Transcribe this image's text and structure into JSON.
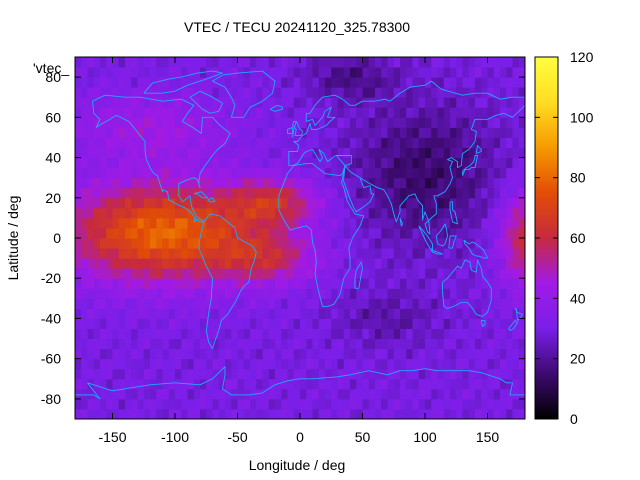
{
  "chart_data": {
    "type": "heatmap",
    "title": "VTEC / TECU 20241120_325.78300",
    "xlabel": "Longitude / deg",
    "ylabel": "Latitude / deg",
    "key_label": "'vtec_",
    "xlim": [
      -180,
      180
    ],
    "ylim": [
      -90,
      90
    ],
    "x_ticks": [
      "-150",
      "-100",
      "-50",
      "0",
      "50",
      "100",
      "150"
    ],
    "y_ticks": [
      "-80",
      "-60",
      "-40",
      "-20",
      "0",
      "20",
      "40",
      "60",
      "80"
    ],
    "colorbar": {
      "range": [
        0,
        120
      ],
      "ticks": [
        "0",
        "20",
        "40",
        "60",
        "80",
        "100",
        "120"
      ]
    },
    "colormap_colors": [
      "#000000",
      "#3d0a70",
      "#7a1fe8",
      "#a11ae6",
      "#c72a3e",
      "#e24d05",
      "#f69a00",
      "#ffdd22",
      "#ffff40"
    ],
    "coastline_color": "#1fa9ff",
    "features": [
      {
        "region": "Central Pacific to South America equatorial band",
        "lon_range": [
          -180,
          -40
        ],
        "lat_range": [
          -30,
          25
        ],
        "vtec": [
          70,
          95
        ]
      },
      {
        "region": "Equatorial Atlantic anomaly crests",
        "lon_range": [
          -40,
          10
        ],
        "lat_range": [
          -20,
          25
        ],
        "vtec": [
          60,
          80
        ]
      },
      {
        "region": "Western Pacific edge",
        "lon_range": [
          155,
          180
        ],
        "lat_range": [
          -25,
          25
        ],
        "vtec": [
          55,
          70
        ]
      },
      {
        "region": "Night-side Asia minimum",
        "lon_range": [
          60,
          140
        ],
        "lat_range": [
          -10,
          60
        ],
        "vtec": [
          10,
          20
        ]
      },
      {
        "region": "Background mid/high latitudes",
        "lon_range": [
          -180,
          180
        ],
        "lat_range": [
          -90,
          90
        ],
        "vtec": [
          25,
          35
        ]
      }
    ]
  }
}
